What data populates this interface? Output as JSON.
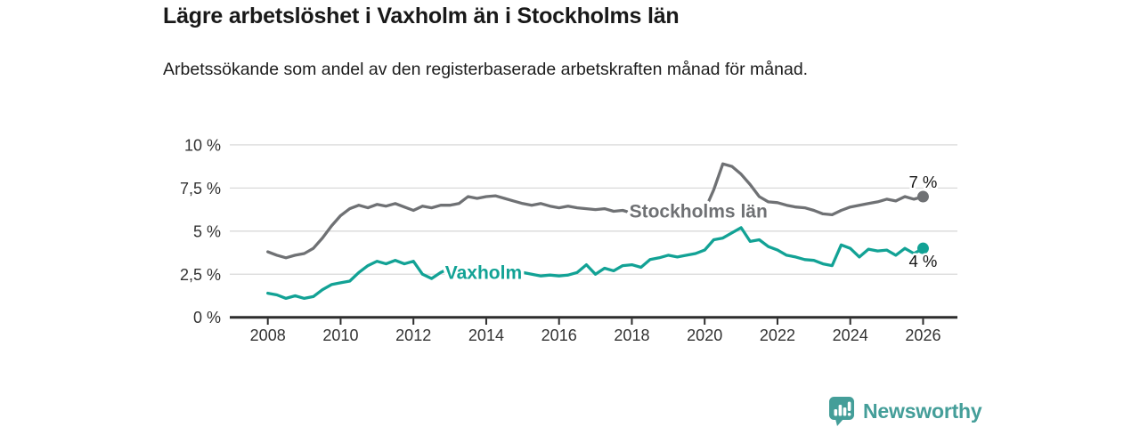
{
  "header": {
    "title": "Lägre arbetslöshet i Vaxholm än i Stockholms län",
    "subtitle": "Arbetssökande som andel av den registerbaserade arbetskraften månad för månad."
  },
  "chart_data": {
    "type": "line",
    "title": "Lägre arbetslöshet i Vaxholm än i Stockholms län",
    "xlabel": "",
    "ylabel": "",
    "grid": "horizontal",
    "legend_position": "inline-labels",
    "ylim": [
      0,
      10
    ],
    "xlim_years": [
      2007,
      2027
    ],
    "x_start_year": 2008,
    "x_step_years": 0.25,
    "x_end_year": 2026,
    "x_ticks": [
      2008,
      2010,
      2012,
      2014,
      2016,
      2018,
      2020,
      2022,
      2024,
      2026
    ],
    "x_tick_labels": [
      "2008",
      "2010",
      "2012",
      "2014",
      "2016",
      "2018",
      "2020",
      "2022",
      "2024",
      "2026"
    ],
    "y_ticks": [
      0,
      2.5,
      5,
      7.5,
      10
    ],
    "y_tick_labels": [
      "0 %",
      "2,5 %",
      "5 %",
      "7,5 %",
      "10 %"
    ],
    "series": [
      {
        "id": "stockholms-lan",
        "name": "Stockholms län",
        "color": "#6f7174",
        "end_label": "7 %",
        "end_label_position": "above",
        "label_at": {
          "x": 2017.93,
          "y": 6.15
        },
        "values": [
          3.8,
          3.6,
          3.45,
          3.6,
          3.7,
          4.0,
          4.6,
          5.3,
          5.9,
          6.3,
          6.5,
          6.35,
          6.55,
          6.45,
          6.6,
          6.4,
          6.2,
          6.45,
          6.35,
          6.5,
          6.5,
          6.6,
          7.0,
          6.9,
          7.0,
          7.05,
          6.9,
          6.75,
          6.6,
          6.5,
          6.6,
          6.45,
          6.35,
          6.45,
          6.35,
          6.3,
          6.25,
          6.3,
          6.15,
          6.2,
          6.05,
          6.1,
          6.0,
          6.05,
          6.0,
          6.05,
          6.1,
          6.15,
          6.2,
          7.4,
          8.9,
          8.75,
          8.3,
          7.7,
          7.0,
          6.7,
          6.65,
          6.5,
          6.4,
          6.35,
          6.2,
          6.0,
          5.95,
          6.2,
          6.4,
          6.5,
          6.6,
          6.7,
          6.85,
          6.75,
          7.0,
          6.85,
          7.0
        ]
      },
      {
        "id": "vaxholm",
        "name": "Vaxholm",
        "color": "#12a295",
        "end_label": "4 %",
        "end_label_position": "below",
        "label_at": {
          "x": 2012.87,
          "y": 2.6
        },
        "values": [
          1.4,
          1.3,
          1.1,
          1.25,
          1.1,
          1.2,
          1.6,
          1.9,
          2.0,
          2.1,
          2.6,
          3.0,
          3.25,
          3.1,
          3.3,
          3.1,
          3.25,
          2.5,
          2.25,
          2.6,
          2.85,
          2.8,
          2.9,
          2.85,
          2.8,
          2.7,
          2.6,
          2.65,
          2.6,
          2.5,
          2.4,
          2.45,
          2.4,
          2.45,
          2.6,
          3.05,
          2.5,
          2.85,
          2.7,
          3.0,
          3.05,
          2.9,
          3.35,
          3.45,
          3.6,
          3.5,
          3.6,
          3.7,
          3.9,
          4.5,
          4.6,
          4.9,
          5.2,
          4.4,
          4.5,
          4.1,
          3.9,
          3.6,
          3.5,
          3.35,
          3.3,
          3.1,
          3.0,
          4.2,
          4.0,
          3.5,
          3.95,
          3.85,
          3.9,
          3.6,
          4.0,
          3.7,
          4.0
        ]
      }
    ]
  },
  "footer": {
    "brand": "Newsworthy",
    "brand_color": "#449e99",
    "logo_icon": "bar-chart-speech-bubble-icon"
  },
  "colors": {
    "gridline": "#d9d9d9",
    "axis": "#2d2d2d",
    "axis_label": "#333333",
    "end_label_text": "#141414"
  }
}
